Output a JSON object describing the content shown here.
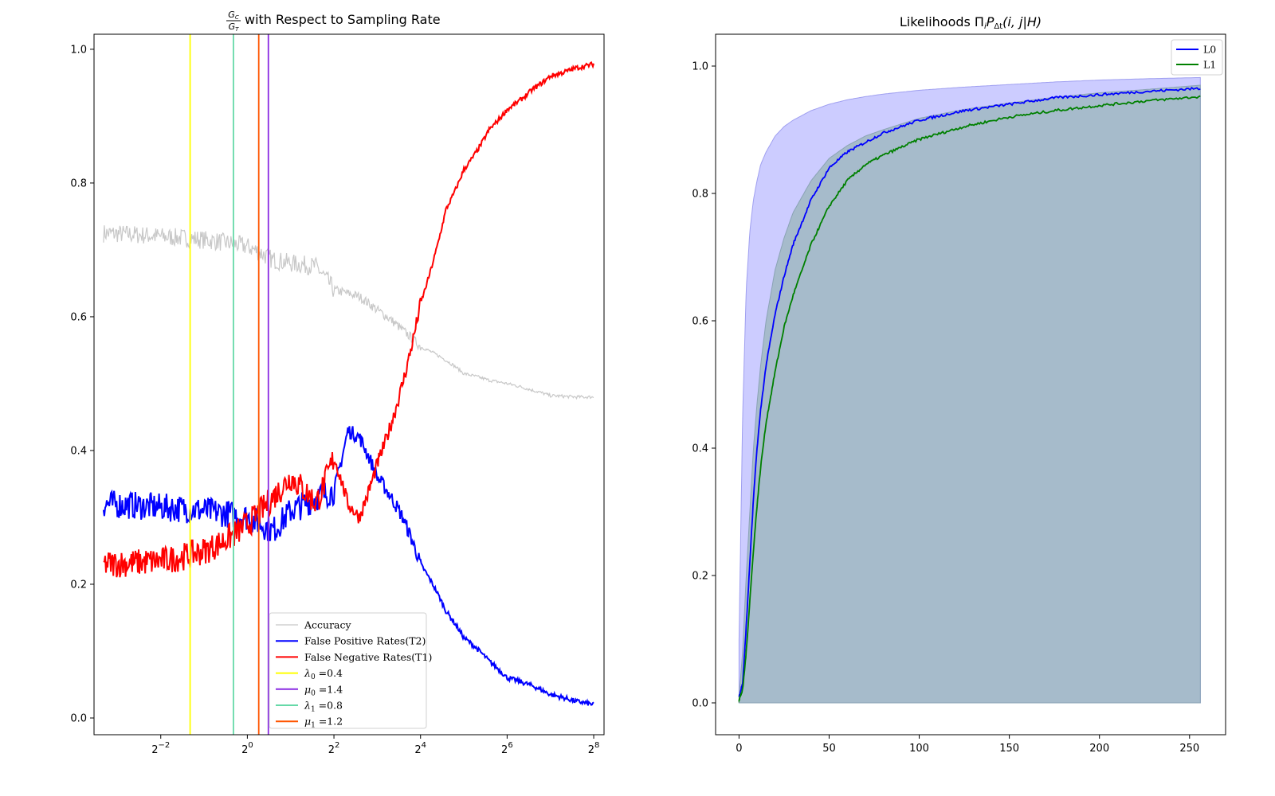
{
  "chart_data": [
    {
      "type": "line",
      "title": "with Respect to Sampling Rate",
      "title_fraction": {
        "numerator": "G",
        "numerator_sub": "C",
        "denominator": "G",
        "denominator_sub": "T"
      },
      "xscale": "log2",
      "xlim": [
        0.0859,
        302
      ],
      "ylim": [
        -0.025,
        1.0225
      ],
      "xticks": [
        {
          "value": 0.25,
          "base": "2",
          "exp": "−2"
        },
        {
          "value": 1,
          "base": "2",
          "exp": "0"
        },
        {
          "value": 4,
          "base": "2",
          "exp": "2"
        },
        {
          "value": 16,
          "base": "2",
          "exp": "4"
        },
        {
          "value": 64,
          "base": "2",
          "exp": "6"
        },
        {
          "value": 256,
          "base": "2",
          "exp": "8"
        }
      ],
      "yticks": [
        "0.0",
        "0.2",
        "0.4",
        "0.6",
        "0.8",
        "1.0"
      ],
      "legend_position": "lower right",
      "series": [
        {
          "name": "Accuracy",
          "color": "#c8c8c8",
          "x": [
            0.1,
            0.25,
            0.5,
            1,
            1.5,
            2,
            3,
            4,
            6,
            8,
            12,
            16,
            24,
            32,
            48,
            64,
            96,
            128,
            192,
            256
          ],
          "y": [
            0.725,
            0.72,
            0.715,
            0.705,
            0.685,
            0.68,
            0.675,
            0.64,
            0.63,
            0.61,
            0.58,
            0.555,
            0.535,
            0.515,
            0.505,
            0.5,
            0.49,
            0.482,
            0.48,
            0.48
          ]
        },
        {
          "name": "False Positive Rates(T2)",
          "color": "#0000ff",
          "x": [
            0.1,
            0.25,
            0.5,
            1,
            1.5,
            2,
            3,
            4,
            5,
            6,
            8,
            12,
            16,
            24,
            32,
            48,
            64,
            96,
            128,
            192,
            256
          ],
          "y": [
            0.32,
            0.315,
            0.31,
            0.3,
            0.28,
            0.31,
            0.33,
            0.34,
            0.43,
            0.42,
            0.36,
            0.3,
            0.23,
            0.16,
            0.12,
            0.085,
            0.06,
            0.048,
            0.035,
            0.025,
            0.02
          ]
        },
        {
          "name": "False Negative Rates(T1)",
          "color": "#ff0000",
          "x": [
            0.1,
            0.25,
            0.5,
            1,
            1.5,
            2,
            3,
            4,
            5,
            6,
            8,
            12,
            16,
            24,
            32,
            48,
            64,
            96,
            128,
            192,
            256
          ],
          "y": [
            0.23,
            0.235,
            0.25,
            0.29,
            0.33,
            0.36,
            0.32,
            0.39,
            0.32,
            0.3,
            0.38,
            0.5,
            0.62,
            0.76,
            0.82,
            0.88,
            0.91,
            0.94,
            0.96,
            0.972,
            0.978
          ]
        }
      ],
      "vlines": [
        {
          "label": "$\\lambda_0$ =0.4",
          "sym": "λ",
          "sub": "0",
          "value": "0.4",
          "color": "#ffff00",
          "x": 0.4
        },
        {
          "label": "$\\mu_0$ =1.4",
          "sym": "μ",
          "sub": "0",
          "value": "1.4",
          "color": "#8a2be2",
          "x": 1.4
        },
        {
          "label": "$\\lambda_1$ =0.8",
          "sym": "λ",
          "sub": "1",
          "value": "0.8",
          "color": "#66d9a8",
          "x": 0.8
        },
        {
          "label": "$\\mu_1$ =1.2",
          "sym": "μ",
          "sub": "1",
          "value": "1.2",
          "color": "#ff5500",
          "x": 1.2
        }
      ]
    },
    {
      "type": "area",
      "title": "Likelihoods Π",
      "title_math": {
        "i": "i",
        "P": "P",
        "sub": "Δt",
        "args": "(i, j|H)"
      },
      "xlim": [
        -13,
        270
      ],
      "ylim": [
        -0.05,
        1.05
      ],
      "xticks": [
        "0",
        "50",
        "100",
        "150",
        "200",
        "250"
      ],
      "yticks": [
        "0.0",
        "0.2",
        "0.4",
        "0.6",
        "0.8",
        "1.0"
      ],
      "legend_position": "upper right",
      "series": [
        {
          "name": "L0",
          "color": "#0000ff",
          "x": [
            0,
            2,
            4,
            6,
            8,
            10,
            12,
            15,
            20,
            25,
            30,
            40,
            50,
            60,
            70,
            80,
            100,
            125,
            150,
            175,
            200,
            225,
            256
          ],
          "y": [
            0.01,
            0.03,
            0.12,
            0.22,
            0.32,
            0.4,
            0.46,
            0.53,
            0.61,
            0.67,
            0.72,
            0.79,
            0.84,
            0.865,
            0.88,
            0.895,
            0.915,
            0.93,
            0.94,
            0.95,
            0.955,
            0.96,
            0.965
          ]
        },
        {
          "name": "L1",
          "color": "#008000",
          "x": [
            0,
            2,
            4,
            6,
            8,
            10,
            12,
            15,
            20,
            25,
            30,
            40,
            50,
            60,
            70,
            80,
            100,
            125,
            150,
            175,
            200,
            225,
            256
          ],
          "y": [
            0.005,
            0.02,
            0.08,
            0.16,
            0.24,
            0.31,
            0.37,
            0.44,
            0.52,
            0.59,
            0.64,
            0.72,
            0.78,
            0.82,
            0.845,
            0.86,
            0.885,
            0.905,
            0.92,
            0.93,
            0.938,
            0.945,
            0.952
          ]
        }
      ],
      "bands": [
        {
          "color": "#ccccff",
          "x": [
            0,
            2,
            4,
            6,
            8,
            10,
            12,
            15,
            20,
            25,
            30,
            40,
            50,
            60,
            70,
            80,
            100,
            125,
            150,
            175,
            200,
            225,
            256
          ],
          "upper": [
            0.1,
            0.45,
            0.65,
            0.74,
            0.79,
            0.82,
            0.845,
            0.865,
            0.89,
            0.905,
            0.915,
            0.93,
            0.94,
            0.947,
            0.952,
            0.956,
            0.962,
            0.967,
            0.971,
            0.975,
            0.978,
            0.98,
            0.982
          ]
        },
        {
          "color": "#a3b9c8",
          "x": [
            0,
            2,
            4,
            6,
            8,
            10,
            12,
            15,
            20,
            25,
            30,
            40,
            50,
            60,
            70,
            80,
            100,
            125,
            150,
            175,
            200,
            225,
            256
          ],
          "upper": [
            0.01,
            0.08,
            0.2,
            0.3,
            0.4,
            0.47,
            0.53,
            0.6,
            0.68,
            0.73,
            0.77,
            0.82,
            0.855,
            0.875,
            0.89,
            0.9,
            0.918,
            0.932,
            0.942,
            0.951,
            0.958,
            0.963,
            0.97
          ]
        }
      ]
    }
  ]
}
